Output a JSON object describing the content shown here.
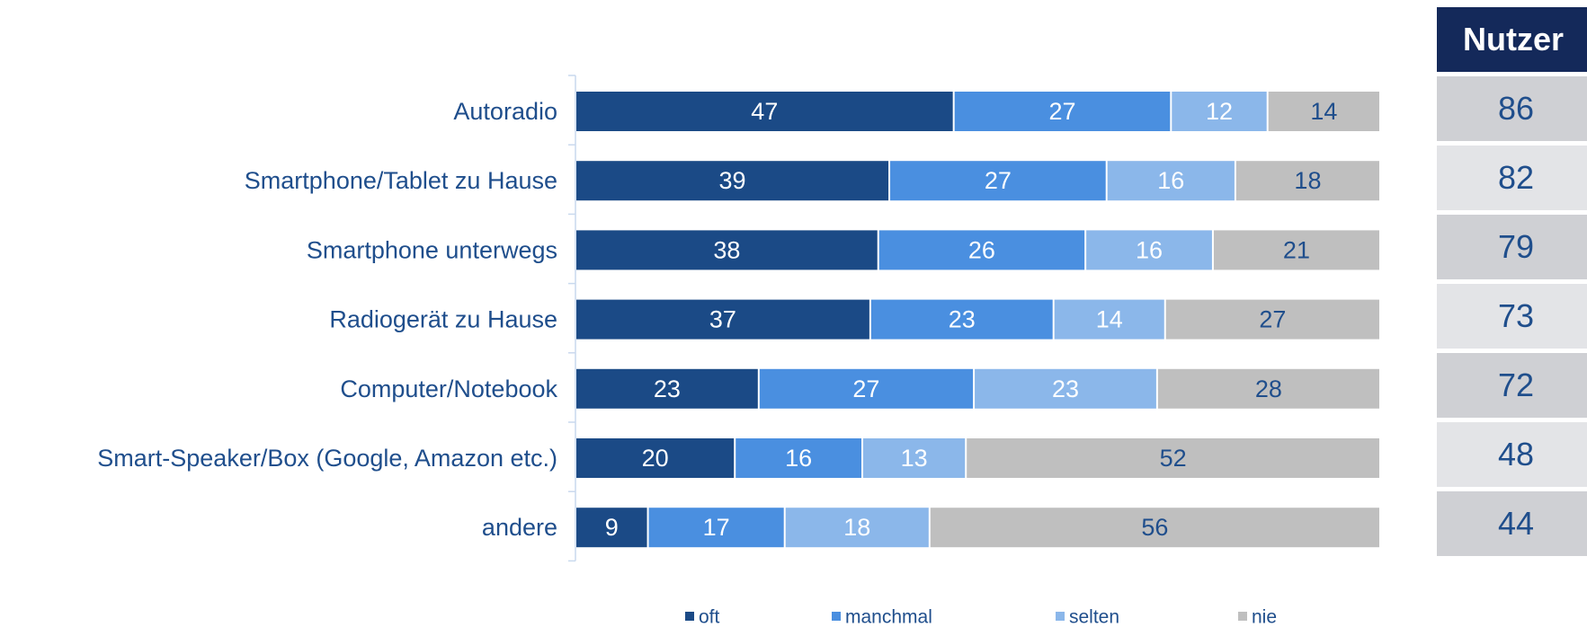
{
  "chart_data": {
    "type": "bar",
    "orientation": "horizontal",
    "stacked": true,
    "categories": [
      "Autoradio",
      "Smartphone/Tablet zu Hause",
      "Smartphone unterwegs",
      "Radiogerät zu Hause",
      "Computer/Notebook",
      "Smart-Speaker/Box (Google, Amazon etc.)",
      "andere"
    ],
    "series": [
      {
        "name": "oft",
        "color": "#1b4a86",
        "label_color": "#ffffff",
        "values": [
          47,
          39,
          38,
          37,
          23,
          20,
          9
        ]
      },
      {
        "name": "manchmal",
        "color": "#4a8fe0",
        "label_color": "#ffffff",
        "values": [
          27,
          27,
          26,
          23,
          27,
          16,
          17
        ]
      },
      {
        "name": "selten",
        "color": "#8bb7ea",
        "label_color": "#ffffff",
        "values": [
          12,
          16,
          16,
          14,
          23,
          13,
          18
        ]
      },
      {
        "name": "nie",
        "color": "#bfbfbf",
        "label_color": "#1f4e8c",
        "values": [
          14,
          18,
          21,
          27,
          28,
          52,
          56
        ]
      }
    ],
    "legend_position": "bottom",
    "grid": false
  },
  "nutzer": {
    "header": "Nutzer",
    "values": [
      "86",
      "82",
      "79",
      "73",
      "72",
      "48",
      "44"
    ]
  }
}
